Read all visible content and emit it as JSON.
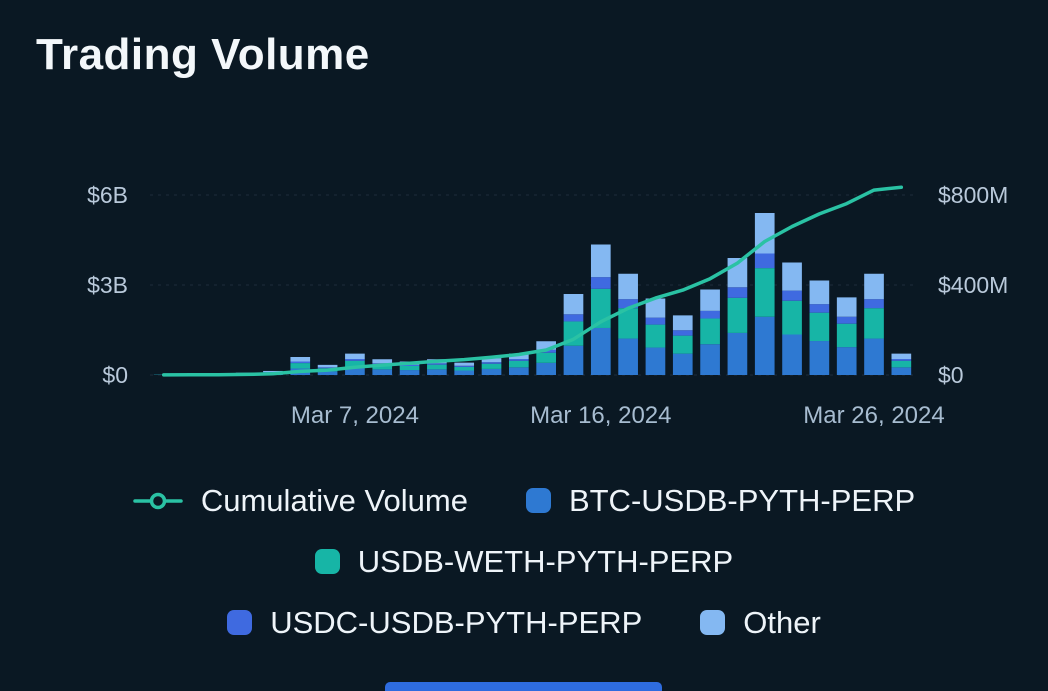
{
  "page": {
    "title": "Trading Volume",
    "background": "#0a1823",
    "accent_bar_color": "#2e6cdf"
  },
  "chart_data": {
    "type": "bar",
    "subtype": "stacked-bars-with-line-overlay",
    "title": "Trading Volume",
    "grid": true,
    "legend_position": "bottom",
    "x": [
      "Feb 29, 2024",
      "Mar 1, 2024",
      "Mar 2, 2024",
      "Mar 3, 2024",
      "Mar 4, 2024",
      "Mar 5, 2024",
      "Mar 6, 2024",
      "Mar 7, 2024",
      "Mar 8, 2024",
      "Mar 9, 2024",
      "Mar 10, 2024",
      "Mar 11, 2024",
      "Mar 12, 2024",
      "Mar 13, 2024",
      "Mar 14, 2024",
      "Mar 15, 2024",
      "Mar 16, 2024",
      "Mar 17, 2024",
      "Mar 18, 2024",
      "Mar 19, 2024",
      "Mar 20, 2024",
      "Mar 21, 2024",
      "Mar 22, 2024",
      "Mar 23, 2024",
      "Mar 24, 2024",
      "Mar 25, 2024",
      "Mar 26, 2024",
      "Mar 27, 2024"
    ],
    "bar_series": [
      {
        "name": "BTC-USDB-PYTH-PERP",
        "color": "#2e79d2",
        "axis": "right",
        "values_musd": [
          1,
          1,
          2,
          4,
          6,
          29,
          16,
          34,
          25,
          22,
          25,
          20,
          27,
          34,
          54,
          130,
          209,
          162,
          122,
          95,
          137,
          187,
          259,
          180,
          151,
          124,
          162,
          34
        ]
      },
      {
        "name": "USDB-WETH-PYTH-PERP",
        "color": "#17b5a6",
        "axis": "right",
        "values_musd": [
          1,
          1,
          2,
          3,
          5,
          24,
          14,
          29,
          21,
          18,
          21,
          16,
          23,
          29,
          45,
          108,
          174,
          135,
          102,
          80,
          114,
          156,
          216,
          150,
          126,
          104,
          135,
          29
        ]
      },
      {
        "name": "USDC-USDB-PYTH-PERP",
        "color": "#3f6ae0",
        "axis": "right",
        "values_musd": [
          0,
          0,
          1,
          1,
          2,
          7,
          4,
          8,
          6,
          5,
          6,
          5,
          7,
          8,
          13,
          32,
          52,
          40,
          31,
          24,
          34,
          47,
          65,
          45,
          38,
          31,
          40,
          8
        ]
      },
      {
        "name": "Other",
        "color": "#84b8f2",
        "axis": "right",
        "values_musd": [
          0,
          1,
          1,
          2,
          5,
          20,
          11,
          24,
          18,
          15,
          18,
          14,
          18,
          24,
          38,
          90,
          145,
          113,
          85,
          66,
          95,
          130,
          180,
          125,
          105,
          86,
          113,
          24
        ]
      }
    ],
    "line_series": {
      "name": "Cumulative Volume",
      "color": "#2ac2a4",
      "axis": "left",
      "values_musd": [
        2,
        5,
        11,
        21,
        39,
        119,
        164,
        259,
        329,
        389,
        459,
        514,
        589,
        684,
        834,
        1194,
        1774,
        2224,
        2564,
        2829,
        3209,
        3729,
        4449,
        4949,
        5369,
        5714,
        6164,
        6259
      ]
    },
    "left_axis": {
      "ticks": [
        {
          "label": "$0",
          "value_musd": 0
        },
        {
          "label": "$3B",
          "value_musd": 3000
        },
        {
          "label": "$6B",
          "value_musd": 6000
        }
      ],
      "top_value_musd": 6000
    },
    "right_axis": {
      "ticks": [
        {
          "label": "$0",
          "value_musd": 0
        },
        {
          "label": "$400M",
          "value_musd": 400
        },
        {
          "label": "$800M",
          "value_musd": 800
        }
      ],
      "top_value_musd": 800
    },
    "x_ticks": [
      {
        "label": "Mar 7, 2024",
        "index": 7
      },
      {
        "label": "Mar 16, 2024",
        "index": 16
      },
      {
        "label": "Mar 26, 2024",
        "index": 26
      }
    ],
    "legend_rows": [
      [
        "Cumulative Volume",
        "BTC-USDB-PYTH-PERP"
      ],
      [
        "USDB-WETH-PYTH-PERP"
      ],
      [
        "USDC-USDB-PYTH-PERP",
        "Other"
      ]
    ],
    "colors": {
      "grid": "rgba(150,180,205,0.14)",
      "axis_label": "#b9c9da",
      "date_label": "#a7bcd0",
      "background": "#0a1823"
    }
  }
}
